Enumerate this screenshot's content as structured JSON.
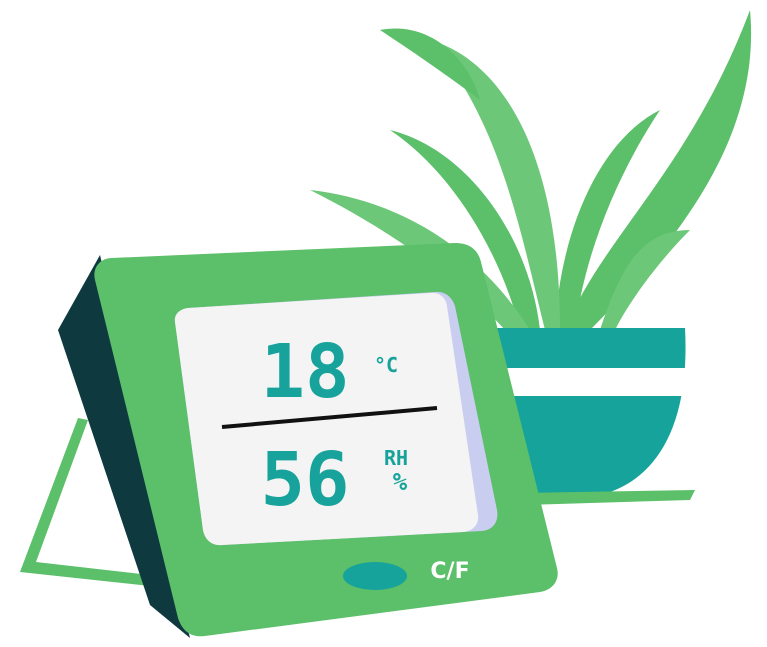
{
  "display": {
    "temperature": "18",
    "temperature_unit": "°C",
    "humidity": "56",
    "humidity_unit_top": "RH",
    "humidity_unit_bottom": "%"
  },
  "button": {
    "label": "C/F"
  }
}
